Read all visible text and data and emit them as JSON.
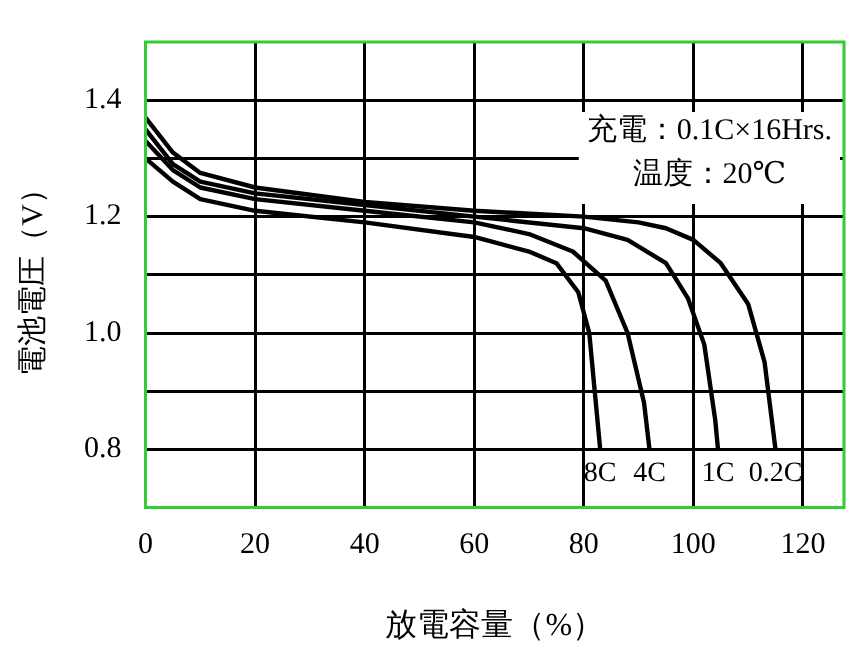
{
  "chart_data": {
    "type": "line",
    "xlabel": "放電容量（%）",
    "ylabel": "電池電圧（V）",
    "annotations": [
      "充電：0.1C×16Hrs.",
      "温度：20℃"
    ],
    "xlim": [
      0,
      127.5
    ],
    "xticks": [
      0,
      20,
      40,
      60,
      80,
      100,
      120
    ],
    "ylim": [
      0.7,
      1.5
    ],
    "yticks": [
      {
        "value": 0.8,
        "label": "0.8"
      },
      {
        "value": 0.9,
        "label": null
      },
      {
        "value": 1.0,
        "label": "1.0"
      },
      {
        "value": 1.1,
        "label": null
      },
      {
        "value": 1.2,
        "label": "1.2"
      },
      {
        "value": 1.3,
        "label": null
      },
      {
        "value": 1.4,
        "label": "1.4"
      }
    ],
    "grid": true,
    "legend": false,
    "marker": "none",
    "line_style": "solid",
    "series": [
      {
        "name": "8C",
        "color": "#000000",
        "x": [
          0,
          5,
          10,
          20,
          40,
          60,
          70,
          75,
          79,
          81,
          82,
          83
        ],
        "values": [
          1.3,
          1.26,
          1.23,
          1.21,
          1.19,
          1.165,
          1.14,
          1.12,
          1.07,
          1.0,
          0.9,
          0.8
        ]
      },
      {
        "name": "4C",
        "color": "#000000",
        "x": [
          0,
          5,
          10,
          20,
          40,
          60,
          70,
          78,
          84,
          88,
          91,
          92
        ],
        "values": [
          1.33,
          1.28,
          1.25,
          1.23,
          1.21,
          1.19,
          1.17,
          1.14,
          1.09,
          1.0,
          0.88,
          0.8
        ]
      },
      {
        "name": "1C",
        "color": "#000000",
        "x": [
          0,
          5,
          10,
          20,
          40,
          60,
          80,
          88,
          95,
          99,
          102,
          104,
          104.5
        ],
        "values": [
          1.35,
          1.29,
          1.26,
          1.24,
          1.22,
          1.2,
          1.18,
          1.16,
          1.12,
          1.06,
          0.98,
          0.85,
          0.8
        ]
      },
      {
        "name": "0.2C",
        "color": "#000000",
        "x": [
          0,
          5,
          10,
          20,
          40,
          60,
          80,
          90,
          95,
          100,
          105,
          110,
          113,
          115
        ],
        "values": [
          1.37,
          1.31,
          1.275,
          1.25,
          1.225,
          1.21,
          1.2,
          1.19,
          1.18,
          1.16,
          1.12,
          1.05,
          0.95,
          0.8
        ]
      }
    ]
  }
}
